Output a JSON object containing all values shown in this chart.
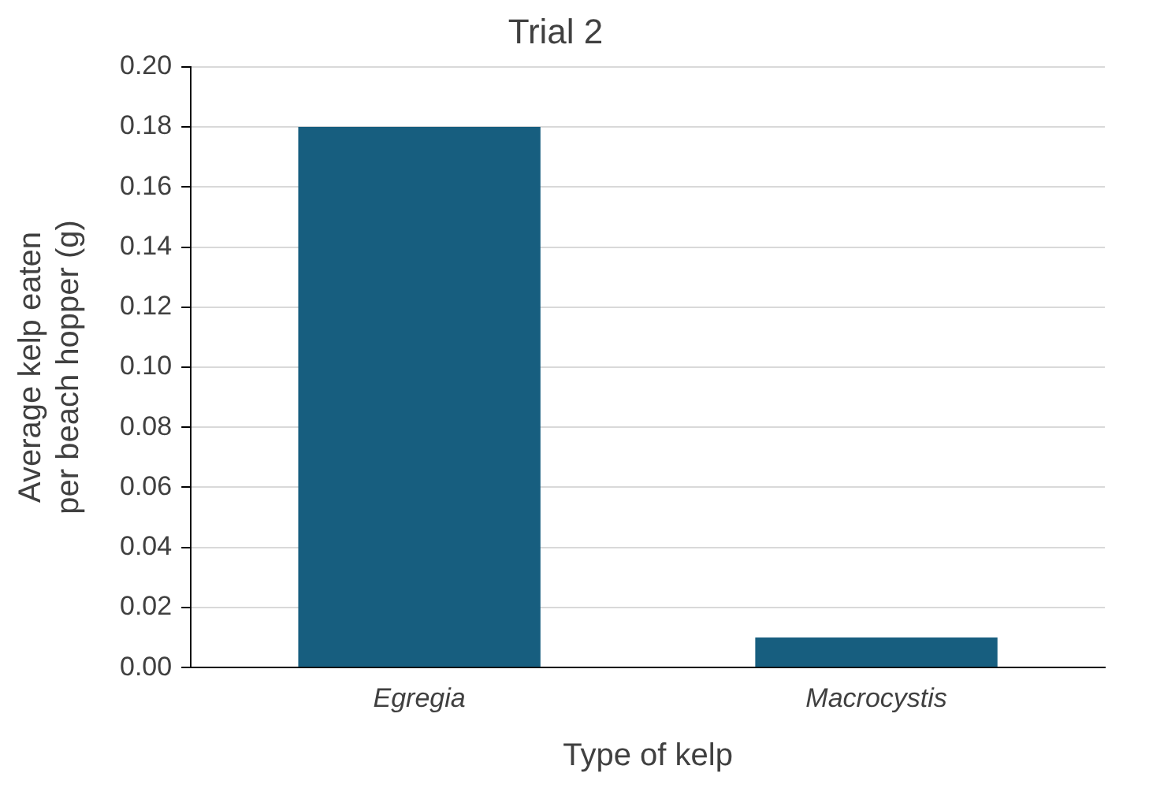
{
  "chart_data": {
    "type": "bar",
    "title": "Trial 2",
    "xlabel": "Type of kelp",
    "ylabel": "Average kelp eaten per beach hopper (g)",
    "categories": [
      "Egregia",
      "Macrocystis"
    ],
    "values": [
      0.18,
      0.01
    ],
    "color": "#175e7f",
    "ylim": [
      0,
      0.2
    ],
    "yticks": [
      {
        "value": 0,
        "label": "0.00"
      },
      {
        "value": 0.02,
        "label": "0.02"
      },
      {
        "value": 0.04,
        "label": "0.04"
      },
      {
        "value": 0.06,
        "label": "0.06"
      },
      {
        "value": 0.08,
        "label": "0.08"
      },
      {
        "value": 0.1,
        "label": "0.10"
      },
      {
        "value": 0.12,
        "label": "0.12"
      },
      {
        "value": 0.14,
        "label": "0.14"
      },
      {
        "value": 0.16,
        "label": "0.16"
      },
      {
        "value": 0.18,
        "label": "0.18"
      },
      {
        "value": 0.2,
        "label": "0.20"
      }
    ],
    "grid": "y",
    "legend": false
  }
}
